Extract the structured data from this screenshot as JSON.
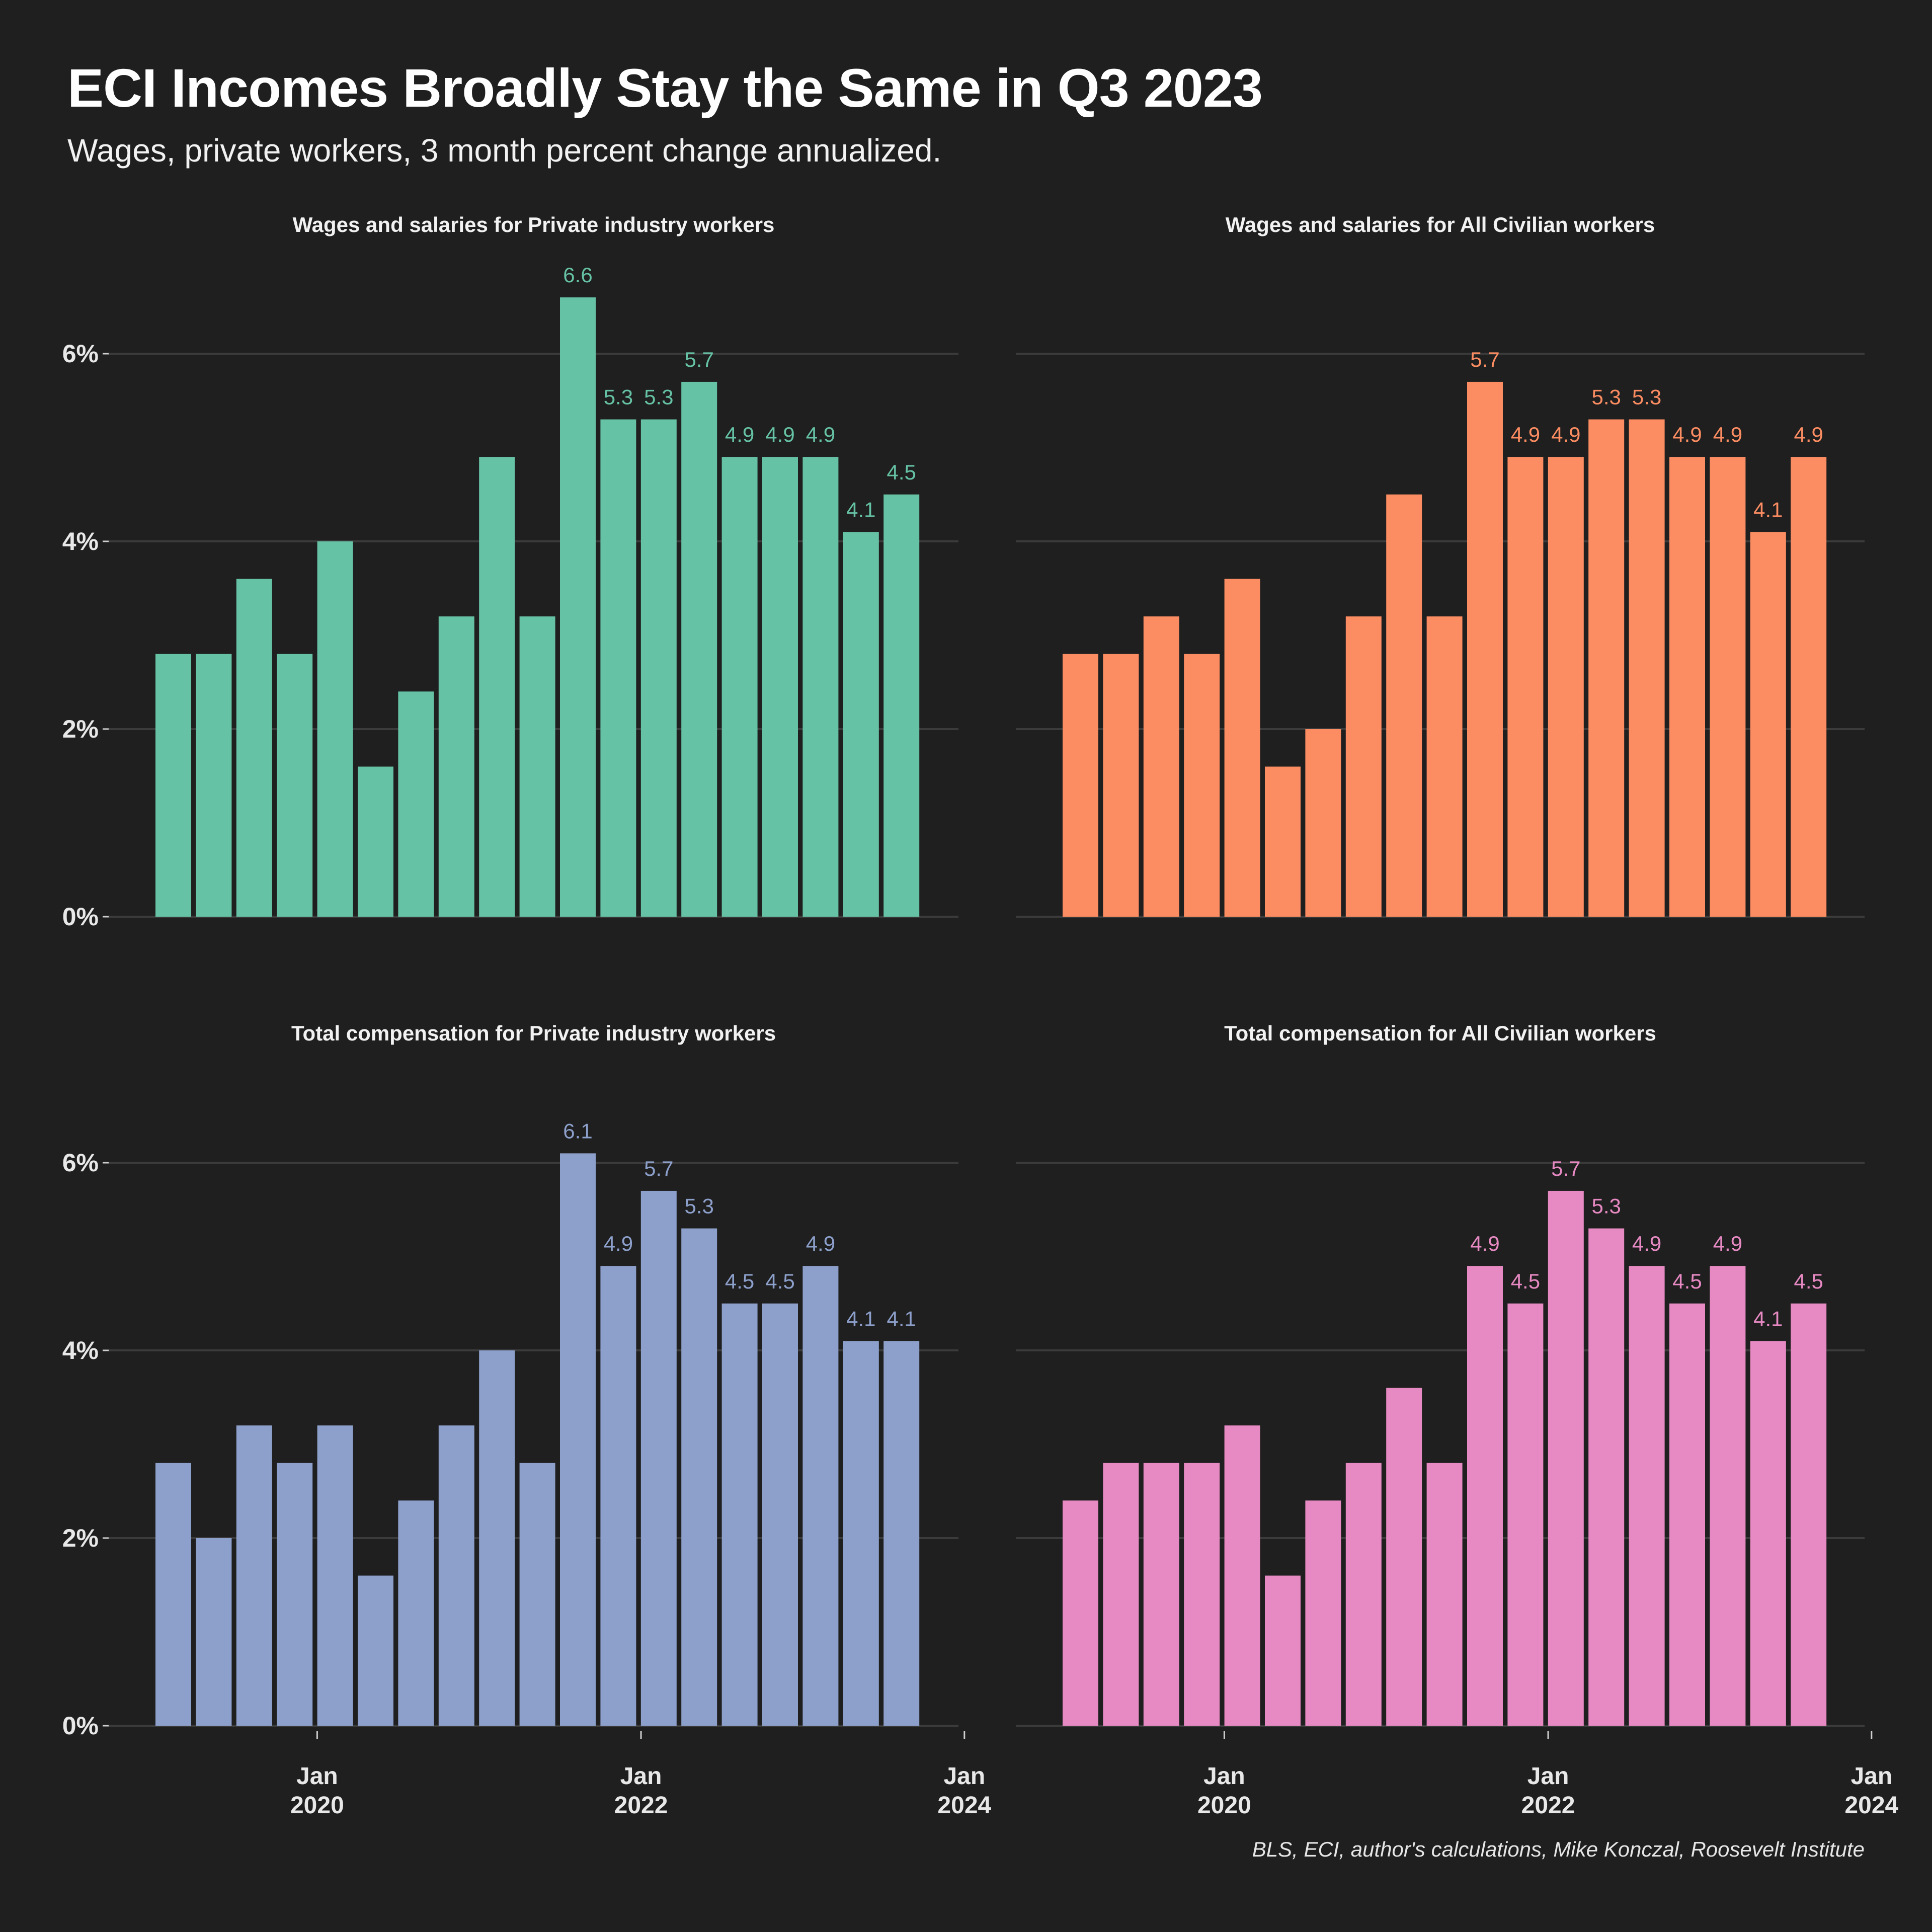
{
  "title": "ECI Incomes Broadly Stay the Same in Q3 2023",
  "subtitle": "Wages, private workers, 3 month percent change annualized.",
  "caption": "BLS, ECI, author's calculations, Mike Konczal, Roosevelt Institute",
  "chart_data": [
    {
      "type": "bar",
      "title": "Wages and salaries for Private industry workers",
      "color": "#66c2a5",
      "categories": [
        "2019 Q1",
        "2019 Q2",
        "2019 Q3",
        "2019 Q4",
        "2020 Q1",
        "2020 Q2",
        "2020 Q3",
        "2020 Q4",
        "2021 Q1",
        "2021 Q2",
        "2021 Q3",
        "2021 Q4",
        "2022 Q1",
        "2022 Q2",
        "2022 Q3",
        "2022 Q4",
        "2023 Q1",
        "2023 Q2",
        "2023 Q3"
      ],
      "values": [
        2.8,
        2.8,
        3.6,
        2.8,
        4.0,
        1.6,
        2.4,
        3.2,
        4.9,
        3.2,
        6.6,
        5.3,
        5.3,
        5.7,
        4.9,
        4.9,
        4.9,
        4.1,
        4.5
      ],
      "labeled_values": [
        null,
        null,
        null,
        null,
        null,
        null,
        null,
        null,
        null,
        null,
        "6.6",
        "5.3",
        "5.3",
        "5.7",
        "4.9",
        "4.9",
        "4.9",
        "4.1",
        "4.5"
      ],
      "yticks": [
        "0%",
        "2%",
        "4%",
        "6%"
      ],
      "ylim": [
        0,
        7
      ]
    },
    {
      "type": "bar",
      "title": "Wages and salaries for All Civilian workers",
      "color": "#fc8d62",
      "categories": [
        "2019 Q1",
        "2019 Q2",
        "2019 Q3",
        "2019 Q4",
        "2020 Q1",
        "2020 Q2",
        "2020 Q3",
        "2020 Q4",
        "2021 Q1",
        "2021 Q2",
        "2021 Q3",
        "2021 Q4",
        "2022 Q1",
        "2022 Q2",
        "2022 Q3",
        "2022 Q4",
        "2023 Q1",
        "2023 Q2",
        "2023 Q3"
      ],
      "values": [
        2.8,
        2.8,
        3.2,
        2.8,
        3.6,
        1.6,
        2.0,
        3.2,
        4.5,
        3.2,
        5.7,
        4.9,
        4.9,
        5.3,
        5.3,
        4.9,
        4.9,
        4.1,
        4.9
      ],
      "labeled_values": [
        null,
        null,
        null,
        null,
        null,
        null,
        null,
        null,
        null,
        null,
        "5.7",
        "4.9",
        "4.9",
        "5.3",
        "5.3",
        "4.9",
        "4.9",
        "4.1",
        "4.9"
      ],
      "yticks": [
        "0%",
        "2%",
        "4%",
        "6%"
      ],
      "ylim": [
        0,
        7
      ]
    },
    {
      "type": "bar",
      "title": "Total compensation for Private industry workers",
      "color": "#8da0cb",
      "categories": [
        "2019 Q1",
        "2019 Q2",
        "2019 Q3",
        "2019 Q4",
        "2020 Q1",
        "2020 Q2",
        "2020 Q3",
        "2020 Q4",
        "2021 Q1",
        "2021 Q2",
        "2021 Q3",
        "2021 Q4",
        "2022 Q1",
        "2022 Q2",
        "2022 Q3",
        "2022 Q4",
        "2023 Q1",
        "2023 Q2",
        "2023 Q3"
      ],
      "values": [
        2.8,
        2.0,
        3.2,
        2.8,
        3.2,
        1.6,
        2.4,
        3.2,
        4.0,
        2.8,
        6.1,
        4.9,
        5.7,
        5.3,
        4.5,
        4.5,
        4.9,
        4.1,
        4.1
      ],
      "labeled_values": [
        null,
        null,
        null,
        null,
        null,
        null,
        null,
        null,
        null,
        null,
        "6.1",
        "4.9",
        "5.7",
        "5.3",
        "4.5",
        "4.5",
        "4.9",
        "4.1",
        "4.1"
      ],
      "yticks": [
        "0%",
        "2%",
        "4%",
        "6%"
      ],
      "ylim": [
        0,
        7
      ]
    },
    {
      "type": "bar",
      "title": "Total compensation for All Civilian workers",
      "color": "#e78ac3",
      "categories": [
        "2019 Q1",
        "2019 Q2",
        "2019 Q3",
        "2019 Q4",
        "2020 Q1",
        "2020 Q2",
        "2020 Q3",
        "2020 Q4",
        "2021 Q1",
        "2021 Q2",
        "2021 Q3",
        "2021 Q4",
        "2022 Q1",
        "2022 Q2",
        "2022 Q3",
        "2022 Q4",
        "2023 Q1",
        "2023 Q2",
        "2023 Q3"
      ],
      "values": [
        2.4,
        2.8,
        2.8,
        2.8,
        3.2,
        1.6,
        2.4,
        2.8,
        3.6,
        2.8,
        4.9,
        4.5,
        5.7,
        5.3,
        4.9,
        4.5,
        4.9,
        4.1,
        4.5
      ],
      "labeled_values": [
        null,
        null,
        null,
        null,
        null,
        null,
        null,
        null,
        null,
        null,
        "4.9",
        "4.5",
        "5.7",
        "5.3",
        "4.9",
        "4.5",
        "4.9",
        "4.1",
        "4.5"
      ],
      "yticks": [
        "0%",
        "2%",
        "4%",
        "6%"
      ],
      "ylim": [
        0,
        7
      ]
    }
  ],
  "x_axis": {
    "ticks": [
      {
        "month": "Jan",
        "year": "2020"
      },
      {
        "month": "Jan",
        "year": "2022"
      },
      {
        "month": "Jan",
        "year": "2024"
      }
    ],
    "tick_dates": [
      "2020-01-01",
      "2022-01-01",
      "2024-01-01"
    ],
    "first_bar_date": "2019-01-01"
  }
}
